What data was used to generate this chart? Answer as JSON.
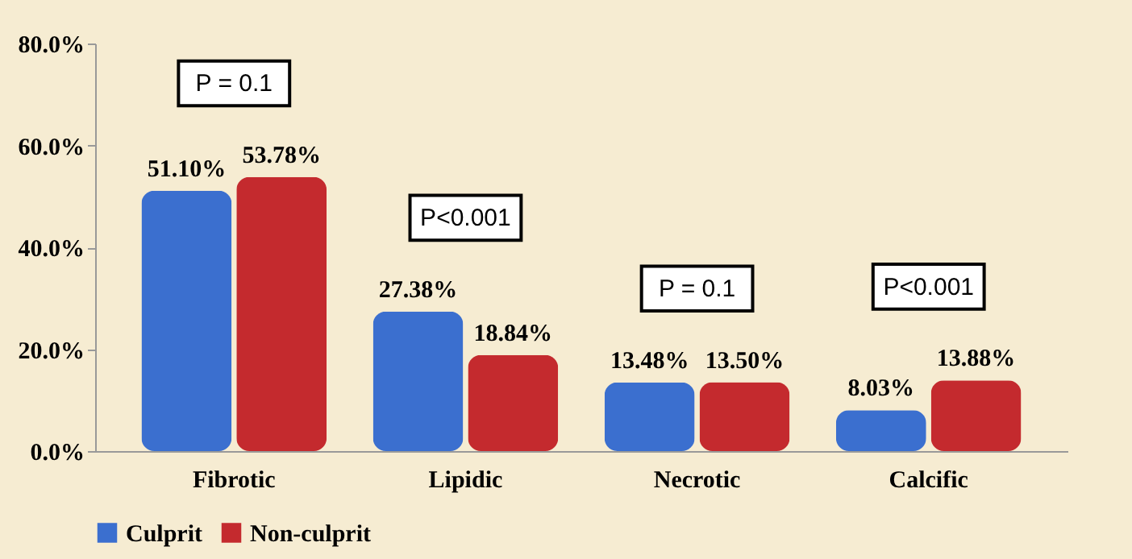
{
  "chart_data": {
    "type": "bar",
    "categories": [
      "Fibrotic",
      "Lipidic",
      "Necrotic",
      "Calcific"
    ],
    "series": [
      {
        "name": "Culprit",
        "color": "#3b6fcf",
        "values": [
          51.1,
          27.38,
          13.48,
          8.03
        ],
        "value_labels": [
          "51.10%",
          "27.38%",
          "13.48%",
          "8.03%"
        ]
      },
      {
        "name": "Non-culprit",
        "color": "#c42a2e",
        "values": [
          53.78,
          18.84,
          13.5,
          13.88
        ],
        "value_labels": [
          "53.78%",
          "18.84%",
          "13.50%",
          "13.88%"
        ]
      }
    ],
    "ylim": [
      0,
      80
    ],
    "yticks": [
      {
        "value": 0,
        "label": "0.0%"
      },
      {
        "value": 20,
        "label": "20.0%"
      },
      {
        "value": 40,
        "label": "40.0%"
      },
      {
        "value": 60,
        "label": "60.0%"
      },
      {
        "value": 80,
        "label": "80.0%"
      }
    ],
    "annotations": [
      "P = 0.1",
      "P<0.001",
      "P = 0.1",
      "P<0.001"
    ],
    "legend": "bottom",
    "grid": false
  }
}
